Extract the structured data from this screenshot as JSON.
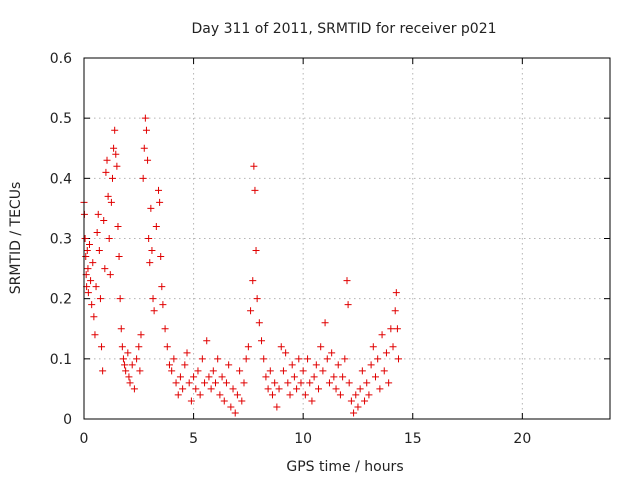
{
  "chart_data": {
    "type": "scatter",
    "title": "Day 311 of 2011, SRMTID for receiver p021",
    "xlabel": "GPS time / hours",
    "ylabel": "SRMTID / TECUs",
    "xlim": [
      0,
      24
    ],
    "ylim": [
      0,
      0.6
    ],
    "xticks": [
      0,
      5,
      10,
      15,
      20
    ],
    "xtick_labels": [
      "0",
      "5",
      "10",
      "15",
      "20"
    ],
    "yticks": [
      0,
      0.1,
      0.2,
      0.3,
      0.4,
      0.5,
      0.6
    ],
    "ytick_labels": [
      "0",
      "0.1",
      "0.2",
      "0.3",
      "0.4",
      "0.5",
      "0.6"
    ],
    "grid": true,
    "marker": "+",
    "color": "#e00000",
    "series": [
      {
        "name": "SRMTID",
        "points": [
          [
            0.0,
            0.36
          ],
          [
            0.02,
            0.34
          ],
          [
            0.05,
            0.3
          ],
          [
            0.08,
            0.27
          ],
          [
            0.1,
            0.24
          ],
          [
            0.12,
            0.22
          ],
          [
            0.15,
            0.28
          ],
          [
            0.18,
            0.25
          ],
          [
            0.2,
            0.21
          ],
          [
            0.25,
            0.29
          ],
          [
            0.3,
            0.23
          ],
          [
            0.35,
            0.19
          ],
          [
            0.4,
            0.26
          ],
          [
            0.45,
            0.17
          ],
          [
            0.5,
            0.14
          ],
          [
            0.55,
            0.22
          ],
          [
            0.6,
            0.31
          ],
          [
            0.65,
            0.34
          ],
          [
            0.7,
            0.28
          ],
          [
            0.75,
            0.2
          ],
          [
            0.8,
            0.12
          ],
          [
            0.85,
            0.08
          ],
          [
            0.9,
            0.33
          ],
          [
            0.95,
            0.25
          ],
          [
            1.0,
            0.41
          ],
          [
            1.05,
            0.43
          ],
          [
            1.1,
            0.37
          ],
          [
            1.15,
            0.3
          ],
          [
            1.2,
            0.24
          ],
          [
            1.25,
            0.36
          ],
          [
            1.3,
            0.4
          ],
          [
            1.35,
            0.45
          ],
          [
            1.4,
            0.48
          ],
          [
            1.45,
            0.44
          ],
          [
            1.5,
            0.42
          ],
          [
            1.55,
            0.32
          ],
          [
            1.6,
            0.27
          ],
          [
            1.65,
            0.2
          ],
          [
            1.7,
            0.15
          ],
          [
            1.75,
            0.12
          ],
          [
            1.8,
            0.1
          ],
          [
            1.85,
            0.09
          ],
          [
            1.9,
            0.08
          ],
          [
            2.0,
            0.11
          ],
          [
            2.05,
            0.07
          ],
          [
            2.1,
            0.06
          ],
          [
            2.2,
            0.09
          ],
          [
            2.3,
            0.05
          ],
          [
            2.4,
            0.1
          ],
          [
            2.5,
            0.12
          ],
          [
            2.55,
            0.08
          ],
          [
            2.6,
            0.14
          ],
          [
            2.7,
            0.4
          ],
          [
            2.75,
            0.45
          ],
          [
            2.8,
            0.5
          ],
          [
            2.85,
            0.48
          ],
          [
            2.9,
            0.43
          ],
          [
            2.95,
            0.3
          ],
          [
            3.0,
            0.26
          ],
          [
            3.05,
            0.35
          ],
          [
            3.1,
            0.28
          ],
          [
            3.15,
            0.2
          ],
          [
            3.2,
            0.18
          ],
          [
            3.3,
            0.32
          ],
          [
            3.4,
            0.38
          ],
          [
            3.45,
            0.36
          ],
          [
            3.5,
            0.27
          ],
          [
            3.55,
            0.22
          ],
          [
            3.6,
            0.19
          ],
          [
            3.7,
            0.15
          ],
          [
            3.8,
            0.12
          ],
          [
            3.9,
            0.09
          ],
          [
            4.0,
            0.08
          ],
          [
            4.1,
            0.1
          ],
          [
            4.2,
            0.06
          ],
          [
            4.3,
            0.04
          ],
          [
            4.4,
            0.07
          ],
          [
            4.5,
            0.05
          ],
          [
            4.6,
            0.09
          ],
          [
            4.7,
            0.11
          ],
          [
            4.8,
            0.06
          ],
          [
            4.9,
            0.03
          ],
          [
            5.0,
            0.07
          ],
          [
            5.1,
            0.05
          ],
          [
            5.2,
            0.08
          ],
          [
            5.3,
            0.04
          ],
          [
            5.4,
            0.1
          ],
          [
            5.5,
            0.06
          ],
          [
            5.6,
            0.13
          ],
          [
            5.7,
            0.07
          ],
          [
            5.8,
            0.05
          ],
          [
            5.9,
            0.08
          ],
          [
            6.0,
            0.06
          ],
          [
            6.1,
            0.1
          ],
          [
            6.2,
            0.04
          ],
          [
            6.3,
            0.07
          ],
          [
            6.4,
            0.03
          ],
          [
            6.5,
            0.06
          ],
          [
            6.6,
            0.09
          ],
          [
            6.7,
            0.02
          ],
          [
            6.8,
            0.05
          ],
          [
            6.9,
            0.01
          ],
          [
            7.0,
            0.04
          ],
          [
            7.1,
            0.08
          ],
          [
            7.2,
            0.03
          ],
          [
            7.3,
            0.06
          ],
          [
            7.4,
            0.1
          ],
          [
            7.5,
            0.12
          ],
          [
            7.6,
            0.18
          ],
          [
            7.7,
            0.23
          ],
          [
            7.75,
            0.42
          ],
          [
            7.8,
            0.38
          ],
          [
            7.85,
            0.28
          ],
          [
            7.9,
            0.2
          ],
          [
            8.0,
            0.16
          ],
          [
            8.1,
            0.13
          ],
          [
            8.2,
            0.1
          ],
          [
            8.3,
            0.07
          ],
          [
            8.4,
            0.05
          ],
          [
            8.5,
            0.08
          ],
          [
            8.6,
            0.04
          ],
          [
            8.7,
            0.06
          ],
          [
            8.8,
            0.02
          ],
          [
            8.9,
            0.05
          ],
          [
            9.0,
            0.12
          ],
          [
            9.1,
            0.08
          ],
          [
            9.2,
            0.11
          ],
          [
            9.3,
            0.06
          ],
          [
            9.4,
            0.04
          ],
          [
            9.5,
            0.09
          ],
          [
            9.6,
            0.07
          ],
          [
            9.7,
            0.05
          ],
          [
            9.8,
            0.1
          ],
          [
            9.9,
            0.06
          ],
          [
            10.0,
            0.08
          ],
          [
            10.1,
            0.04
          ],
          [
            10.2,
            0.1
          ],
          [
            10.3,
            0.06
          ],
          [
            10.4,
            0.03
          ],
          [
            10.5,
            0.07
          ],
          [
            10.6,
            0.09
          ],
          [
            10.7,
            0.05
          ],
          [
            10.8,
            0.12
          ],
          [
            10.9,
            0.08
          ],
          [
            11.0,
            0.16
          ],
          [
            11.1,
            0.1
          ],
          [
            11.2,
            0.06
          ],
          [
            11.3,
            0.11
          ],
          [
            11.4,
            0.07
          ],
          [
            11.5,
            0.05
          ],
          [
            11.6,
            0.09
          ],
          [
            11.7,
            0.04
          ],
          [
            11.8,
            0.07
          ],
          [
            11.9,
            0.1
          ],
          [
            12.0,
            0.23
          ],
          [
            12.05,
            0.19
          ],
          [
            12.1,
            0.06
          ],
          [
            12.2,
            0.03
          ],
          [
            12.3,
            0.01
          ],
          [
            12.4,
            0.04
          ],
          [
            12.5,
            0.02
          ],
          [
            12.6,
            0.05
          ],
          [
            12.7,
            0.08
          ],
          [
            12.8,
            0.03
          ],
          [
            12.9,
            0.06
          ],
          [
            13.0,
            0.04
          ],
          [
            13.1,
            0.09
          ],
          [
            13.2,
            0.12
          ],
          [
            13.3,
            0.07
          ],
          [
            13.4,
            0.1
          ],
          [
            13.5,
            0.05
          ],
          [
            13.6,
            0.14
          ],
          [
            13.7,
            0.08
          ],
          [
            13.8,
            0.11
          ],
          [
            13.9,
            0.06
          ],
          [
            14.0,
            0.15
          ],
          [
            14.1,
            0.12
          ],
          [
            14.2,
            0.18
          ],
          [
            14.25,
            0.21
          ],
          [
            14.3,
            0.15
          ],
          [
            14.35,
            0.1
          ]
        ]
      }
    ]
  }
}
